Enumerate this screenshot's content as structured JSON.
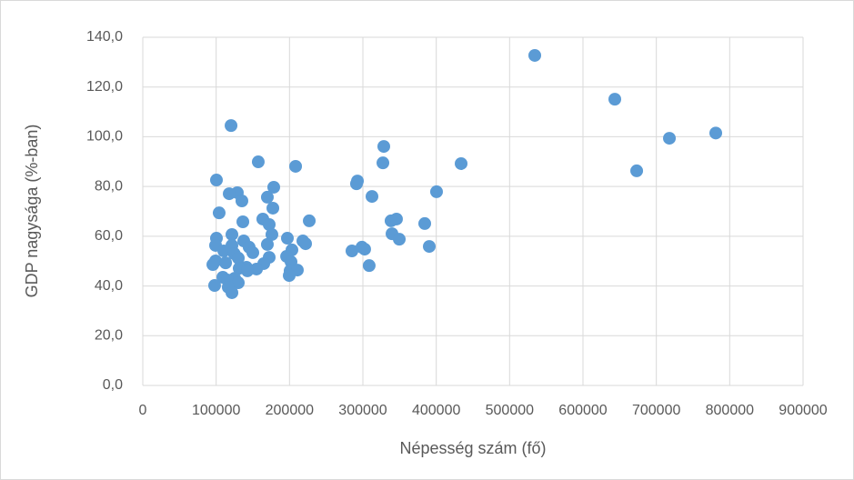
{
  "chart_data": {
    "type": "scatter",
    "xlabel": "Népesség szám (fő)",
    "ylabel": "GDP nagysága (%-ban)",
    "color": "#5b9bd5",
    "grid": true,
    "xlim": [
      0,
      900000
    ],
    "xticks": [
      0,
      100000,
      200000,
      300000,
      400000,
      500000,
      600000,
      700000,
      800000,
      900000
    ],
    "ylim": [
      0,
      140
    ],
    "yticks": [
      {
        "value": 0,
        "label": "0,0"
      },
      {
        "value": 20,
        "label": "20,0"
      },
      {
        "value": 40,
        "label": "40,0"
      },
      {
        "value": 60,
        "label": "60,0"
      },
      {
        "value": 80,
        "label": "80,0"
      },
      {
        "value": 100,
        "label": "100,0"
      },
      {
        "value": 120,
        "label": "120,0"
      },
      {
        "value": 140,
        "label": "140,0"
      }
    ],
    "x": [
      534300,
      643400,
      781000,
      717800,
      673200,
      120300,
      157400,
      208300,
      328500,
      327300,
      433900,
      292600,
      291300,
      400400,
      312400,
      100400,
      178500,
      128900,
      117800,
      135100,
      169800,
      177300,
      104100,
      226900,
      163600,
      172300,
      136400,
      338400,
      345800,
      384300,
      339700,
      349600,
      390500,
      285100,
      298700,
      302400,
      308600,
      100400,
      99200,
      121500,
      137600,
      176000,
      197100,
      218200,
      221900,
      169800,
      203300,
      145000,
      121500,
      110400,
      124600,
      150000,
      172300,
      196000,
      202100,
      99200,
      112900,
      130200,
      164900,
      95500,
      141300,
      155000,
      131400,
      142600,
      200800,
      210700,
      199600,
      109100,
      125200,
      115400,
      130200,
      97900,
      116500,
      121500
    ],
    "values": [
      132.7,
      115.1,
      101.5,
      99.4,
      86.3,
      104.5,
      89.9,
      88.1,
      96.1,
      89.5,
      89.2,
      82.2,
      81.1,
      77.9,
      76.0,
      82.6,
      79.7,
      77.5,
      77.1,
      74.2,
      75.7,
      71.3,
      69.4,
      66.2,
      66.9,
      64.7,
      65.8,
      66.2,
      66.9,
      65.1,
      61.0,
      58.8,
      55.9,
      54.1,
      55.6,
      54.8,
      48.2,
      59.2,
      56.3,
      60.7,
      58.1,
      60.7,
      59.2,
      58.1,
      57.0,
      56.7,
      54.5,
      55.6,
      56.3,
      54.1,
      53.0,
      53.4,
      51.5,
      51.9,
      49.7,
      50.1,
      49.3,
      51.2,
      49.0,
      48.6,
      47.5,
      46.8,
      47.1,
      46.1,
      46.1,
      46.4,
      44.2,
      43.5,
      43.1,
      42.4,
      41.3,
      40.2,
      39.5,
      37.3
    ]
  }
}
